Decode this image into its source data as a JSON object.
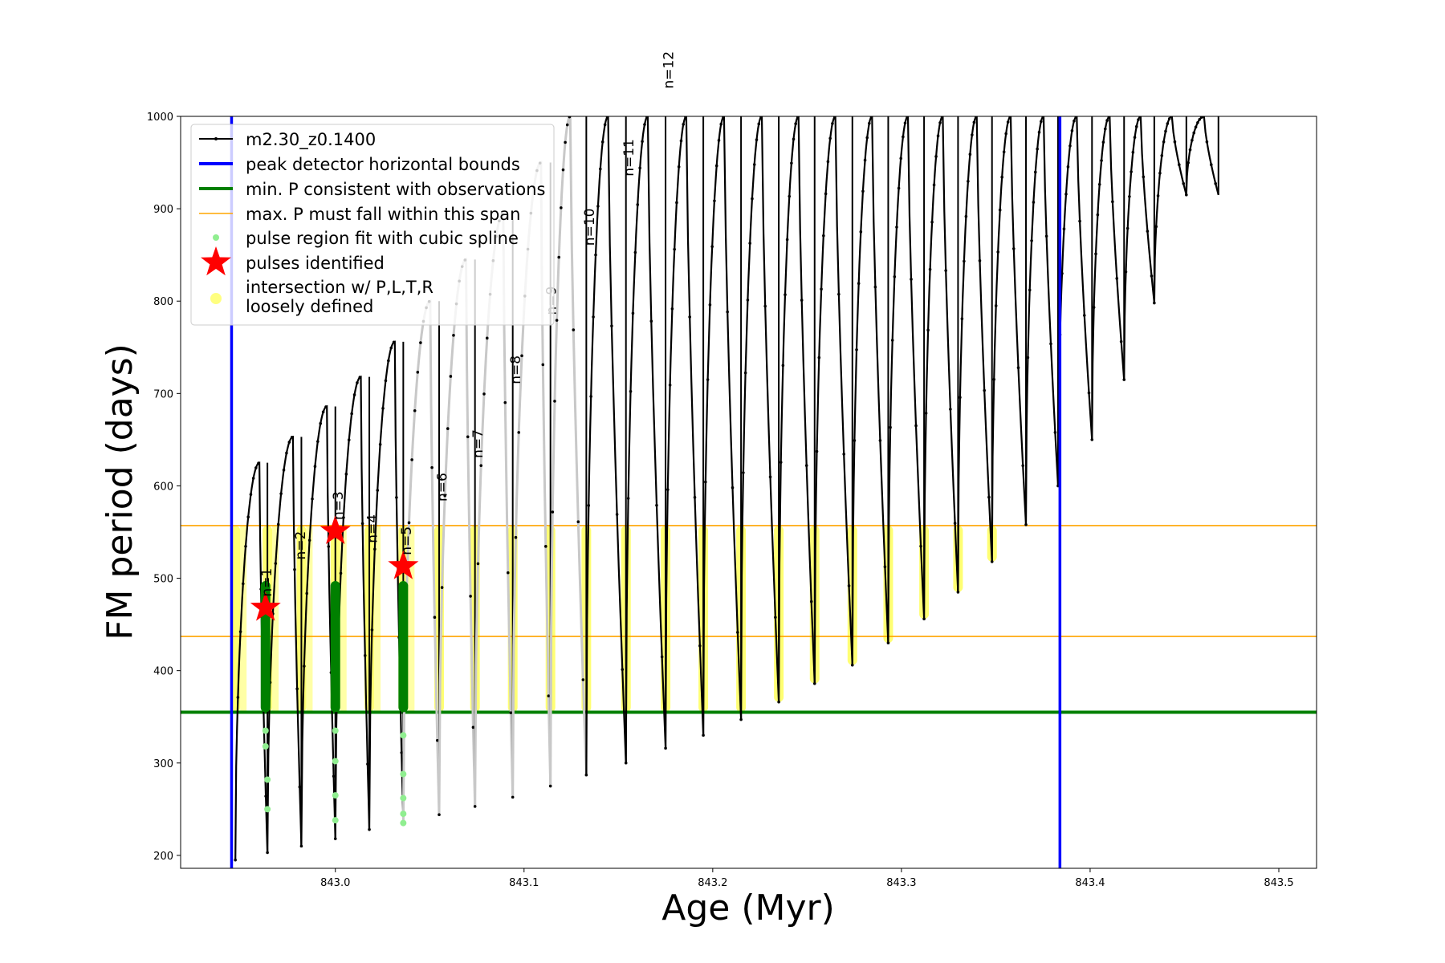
{
  "chart_data": {
    "type": "line",
    "xlabel": "Age (Myr)",
    "ylabel": "FM period (days)",
    "xlim": [
      842.918,
      843.52
    ],
    "ylim": [
      186,
      1000
    ],
    "x_ticks": [
      843.0,
      843.1,
      843.2,
      843.3,
      843.4,
      843.5
    ],
    "x_tick_labels": [
      "843.0",
      "843.1",
      "843.2",
      "843.3",
      "843.4",
      "843.5"
    ],
    "y_ticks": [
      200,
      300,
      400,
      500,
      600,
      700,
      800,
      900,
      1000
    ],
    "y_tick_labels": [
      "200",
      "300",
      "400",
      "500",
      "600",
      "700",
      "800",
      "900",
      "1000"
    ],
    "legend_position": "upper-left",
    "legend": [
      {
        "label": "m2.30_z0.1400",
        "color": "#000000",
        "marker": "line-dot"
      },
      {
        "label": "peak detector horizontal bounds",
        "color": "#0000ff",
        "marker": "line-thick"
      },
      {
        "label": "min. P consistent with observations",
        "color": "#008000",
        "marker": "line-thick"
      },
      {
        "label": "max. P must fall within this span",
        "color": "#ffa500",
        "marker": "line-thin"
      },
      {
        "label": "pulse region fit with cubic spline",
        "color": "#90ee90",
        "marker": "dot"
      },
      {
        "label": "pulses identified",
        "color": "#ff0000",
        "marker": "star"
      },
      {
        "label": "intersection w/ P,L,T,R\nloosely defined",
        "color": "#ffff80",
        "marker": "big-dot"
      }
    ],
    "vertical_bounds": [
      842.945,
      843.384
    ],
    "min_period_line": 355,
    "max_period_span": [
      437,
      557
    ],
    "colors": {
      "series": "#000000",
      "bounds": "#0000ff",
      "min": "#008000",
      "span": "#ffa500",
      "spline": "#90ee90",
      "star": "#ff0000",
      "loose": "#ffff00"
    },
    "pulses": [
      {
        "start": 842.947,
        "end": 842.964,
        "peak": 625,
        "min": 195
      },
      {
        "start": 842.964,
        "end": 842.982,
        "peak": 653,
        "min": 203
      },
      {
        "start": 842.982,
        "end": 843.0,
        "peak": 686,
        "min": 210
      },
      {
        "start": 843.0,
        "end": 843.018,
        "peak": 718,
        "min": 218
      },
      {
        "start": 843.018,
        "end": 843.036,
        "peak": 756,
        "min": 228
      },
      {
        "start": 843.036,
        "end": 843.055,
        "peak": 800,
        "min": 236
      },
      {
        "start": 843.055,
        "end": 843.074,
        "peak": 845,
        "min": 244
      },
      {
        "start": 843.074,
        "end": 843.094,
        "peak": 895,
        "min": 253
      },
      {
        "start": 843.094,
        "end": 843.114,
        "peak": 950,
        "min": 263
      },
      {
        "start": 843.114,
        "end": 843.133,
        "peak": 1000,
        "min": 275
      },
      {
        "start": 843.133,
        "end": 843.154,
        "peak": 1000,
        "min": 287
      },
      {
        "start": 843.154,
        "end": 843.175,
        "peak": 1000,
        "min": 300
      },
      {
        "start": 843.175,
        "end": 843.195,
        "peak": 1000,
        "min": 316
      },
      {
        "start": 843.195,
        "end": 843.215,
        "peak": 1000,
        "min": 330
      },
      {
        "start": 843.215,
        "end": 843.235,
        "peak": 1000,
        "min": 347
      },
      {
        "start": 843.235,
        "end": 843.254,
        "peak": 1000,
        "min": 366
      },
      {
        "start": 843.254,
        "end": 843.274,
        "peak": 1000,
        "min": 386
      },
      {
        "start": 843.274,
        "end": 843.293,
        "peak": 1000,
        "min": 406
      },
      {
        "start": 843.293,
        "end": 843.312,
        "peak": 1000,
        "min": 430
      },
      {
        "start": 843.312,
        "end": 843.33,
        "peak": 1000,
        "min": 456
      },
      {
        "start": 843.33,
        "end": 843.348,
        "peak": 1000,
        "min": 485
      },
      {
        "start": 843.348,
        "end": 843.366,
        "peak": 1000,
        "min": 518
      },
      {
        "start": 843.366,
        "end": 843.383,
        "peak": 1000,
        "min": 558
      },
      {
        "start": 843.383,
        "end": 843.401,
        "peak": 1000,
        "min": 600
      },
      {
        "start": 843.401,
        "end": 843.418,
        "peak": 1000,
        "min": 650
      },
      {
        "start": 843.418,
        "end": 843.434,
        "peak": 1000,
        "min": 715
      },
      {
        "start": 843.434,
        "end": 843.451,
        "peak": 1000,
        "min": 798
      },
      {
        "start": 843.451,
        "end": 843.468,
        "peak": 1000,
        "min": 915
      }
    ],
    "pulse_labels": [
      {
        "text": "n=1",
        "x": 842.966,
        "y": 480
      },
      {
        "text": "n=2",
        "x": 842.984,
        "y": 520
      },
      {
        "text": "n=3",
        "x": 843.004,
        "y": 563
      },
      {
        "text": "n=4",
        "x": 843.022,
        "y": 538
      },
      {
        "text": "n=5",
        "x": 843.04,
        "y": 525
      },
      {
        "text": "n=6",
        "x": 843.059,
        "y": 583
      },
      {
        "text": "n=7",
        "x": 843.078,
        "y": 630
      },
      {
        "text": "n=8",
        "x": 843.098,
        "y": 710
      },
      {
        "text": "n=9",
        "x": 843.117,
        "y": 785
      },
      {
        "text": "n=10",
        "x": 843.137,
        "y": 860
      },
      {
        "text": "n=11",
        "x": 843.158,
        "y": 935
      },
      {
        "text": "n=12",
        "x": 843.179,
        "y": 1030
      }
    ],
    "stars": [
      {
        "x": 842.963,
        "y": 468
      },
      {
        "x": 843.0,
        "y": 551
      },
      {
        "x": 843.036,
        "y": 513
      }
    ],
    "green_columns": [
      {
        "x": 842.963,
        "from": 355,
        "to": 497
      },
      {
        "x": 843.0,
        "from": 355,
        "to": 497
      },
      {
        "x": 843.036,
        "from": 355,
        "to": 497
      }
    ],
    "light_green_points": [
      {
        "x": 842.963,
        "y": 335
      },
      {
        "x": 842.963,
        "y": 318
      },
      {
        "x": 842.964,
        "y": 282
      },
      {
        "x": 842.964,
        "y": 250
      },
      {
        "x": 843.0,
        "y": 335
      },
      {
        "x": 843.0,
        "y": 302
      },
      {
        "x": 843.0,
        "y": 265
      },
      {
        "x": 843.0,
        "y": 238
      },
      {
        "x": 843.036,
        "y": 330
      },
      {
        "x": 843.036,
        "y": 288
      },
      {
        "x": 843.036,
        "y": 262
      },
      {
        "x": 843.036,
        "y": 245
      },
      {
        "x": 843.036,
        "y": 235
      }
    ]
  }
}
